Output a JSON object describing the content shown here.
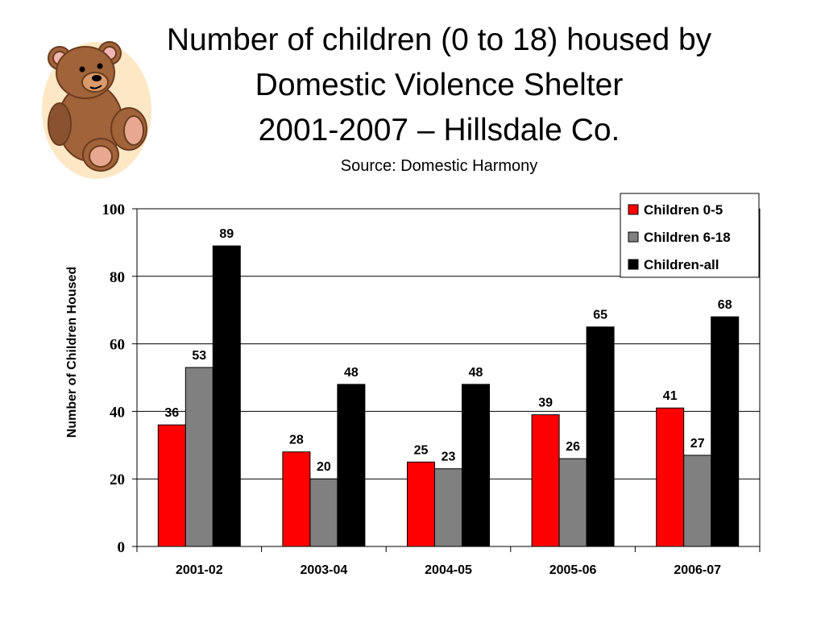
{
  "slide": {
    "title_line1": "Number of children (0 to 18) housed by",
    "title_line2": "Domestic Violence Shelter",
    "title_line3": "2001-2007 – Hillsdale Co.",
    "source": "Source: Domestic Harmony"
  },
  "chart_data": {
    "type": "bar",
    "title": "",
    "xlabel": "",
    "ylabel": "Number of Children Housed",
    "ylim": [
      0,
      100
    ],
    "yticks": [
      0,
      20,
      40,
      60,
      80,
      100
    ],
    "grid": true,
    "legend_position": "top-right",
    "categories": [
      "2001-02",
      "2003-04",
      "2004-05",
      "2005-06",
      "2006-07"
    ],
    "series": [
      {
        "name": "Children 0-5",
        "color": "#ff0000",
        "values": [
          36,
          28,
          25,
          39,
          41
        ]
      },
      {
        "name": "Children 6-18",
        "color": "#808080",
        "values": [
          53,
          20,
          23,
          26,
          27
        ]
      },
      {
        "name": "Children-all",
        "color": "#000000",
        "values": [
          89,
          48,
          48,
          65,
          68
        ]
      }
    ]
  }
}
